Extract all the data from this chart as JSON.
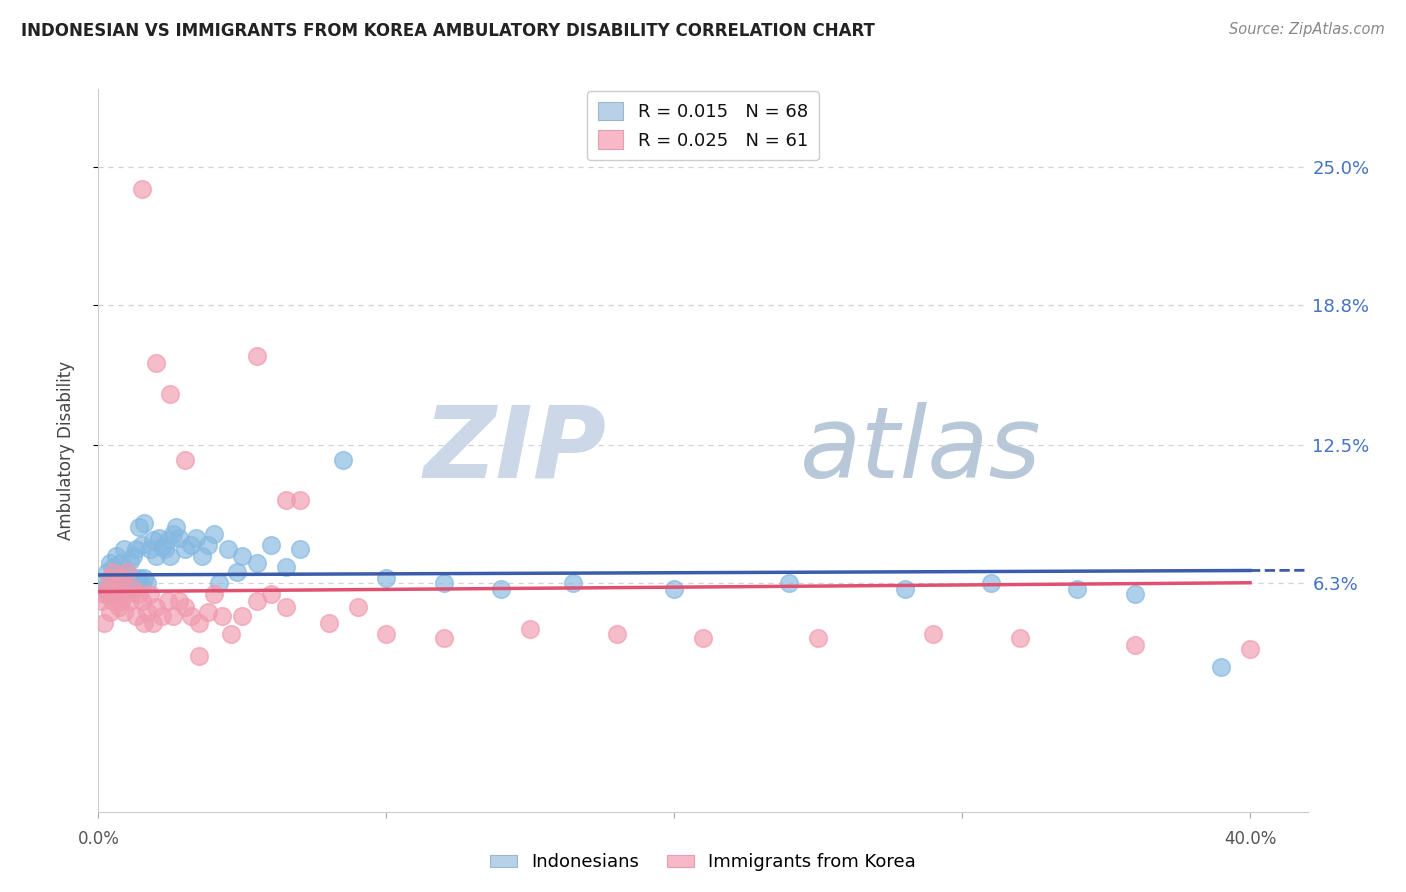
{
  "title": "INDONESIAN VS IMMIGRANTS FROM KOREA AMBULATORY DISABILITY CORRELATION CHART",
  "source": "Source: ZipAtlas.com",
  "ylabel": "Ambulatory Disability",
  "ytick_labels": [
    "6.3%",
    "12.5%",
    "18.8%",
    "25.0%"
  ],
  "ytick_values": [
    0.063,
    0.125,
    0.188,
    0.25
  ],
  "xlim": [
    0.0,
    0.42
  ],
  "ylim": [
    -0.04,
    0.285
  ],
  "legend_label_1": "R = 0.015   N = 68",
  "legend_label_2": "R = 0.025   N = 61",
  "indonesian_color": "#85b8e0",
  "korean_color": "#f09aae",
  "trend_indonesian_color": "#3a5caa",
  "trend_korean_color": "#e05070",
  "background_color": "#ffffff",
  "grid_color": "#cccccc",
  "watermark_zip": "ZIP",
  "watermark_atlas": "atlas",
  "watermark_color": "#ccd8e8",
  "indonesian_x": [
    0.001,
    0.002,
    0.003,
    0.003,
    0.004,
    0.004,
    0.005,
    0.005,
    0.006,
    0.006,
    0.007,
    0.007,
    0.008,
    0.008,
    0.009,
    0.009,
    0.01,
    0.01,
    0.011,
    0.011,
    0.012,
    0.012,
    0.013,
    0.013,
    0.014,
    0.014,
    0.015,
    0.015,
    0.016,
    0.016,
    0.017,
    0.018,
    0.019,
    0.02,
    0.021,
    0.022,
    0.023,
    0.024,
    0.025,
    0.026,
    0.027,
    0.028,
    0.03,
    0.032,
    0.034,
    0.036,
    0.038,
    0.04,
    0.042,
    0.045,
    0.048,
    0.05,
    0.055,
    0.06,
    0.065,
    0.07,
    0.085,
    0.1,
    0.12,
    0.14,
    0.165,
    0.2,
    0.24,
    0.28,
    0.31,
    0.34,
    0.36,
    0.39
  ],
  "indonesian_y": [
    0.063,
    0.06,
    0.058,
    0.068,
    0.065,
    0.072,
    0.06,
    0.07,
    0.058,
    0.075,
    0.063,
    0.068,
    0.06,
    0.072,
    0.065,
    0.078,
    0.063,
    0.068,
    0.06,
    0.073,
    0.065,
    0.075,
    0.062,
    0.078,
    0.065,
    0.088,
    0.062,
    0.08,
    0.065,
    0.09,
    0.063,
    0.078,
    0.082,
    0.075,
    0.083,
    0.079,
    0.078,
    0.082,
    0.075,
    0.085,
    0.088,
    0.083,
    0.078,
    0.08,
    0.083,
    0.075,
    0.08,
    0.085,
    0.063,
    0.078,
    0.068,
    0.075,
    0.072,
    0.08,
    0.07,
    0.078,
    0.118,
    0.065,
    0.063,
    0.06,
    0.063,
    0.06,
    0.063,
    0.06,
    0.063,
    0.06,
    0.058,
    0.025
  ],
  "korean_x": [
    0.001,
    0.002,
    0.002,
    0.003,
    0.004,
    0.004,
    0.005,
    0.005,
    0.006,
    0.007,
    0.007,
    0.008,
    0.008,
    0.009,
    0.01,
    0.01,
    0.011,
    0.012,
    0.013,
    0.014,
    0.015,
    0.016,
    0.017,
    0.018,
    0.019,
    0.02,
    0.022,
    0.024,
    0.026,
    0.028,
    0.03,
    0.032,
    0.035,
    0.038,
    0.04,
    0.043,
    0.046,
    0.05,
    0.055,
    0.06,
    0.065,
    0.07,
    0.08,
    0.09,
    0.1,
    0.12,
    0.15,
    0.18,
    0.21,
    0.25,
    0.29,
    0.32,
    0.36,
    0.4,
    0.015,
    0.02,
    0.025,
    0.03,
    0.035,
    0.055,
    0.065
  ],
  "korean_y": [
    0.055,
    0.058,
    0.045,
    0.06,
    0.05,
    0.065,
    0.055,
    0.068,
    0.058,
    0.052,
    0.06,
    0.055,
    0.065,
    0.05,
    0.058,
    0.068,
    0.055,
    0.06,
    0.048,
    0.058,
    0.055,
    0.045,
    0.05,
    0.058,
    0.045,
    0.052,
    0.048,
    0.055,
    0.048,
    0.055,
    0.052,
    0.048,
    0.045,
    0.05,
    0.058,
    0.048,
    0.04,
    0.048,
    0.055,
    0.058,
    0.052,
    0.1,
    0.045,
    0.052,
    0.04,
    0.038,
    0.042,
    0.04,
    0.038,
    0.038,
    0.04,
    0.038,
    0.035,
    0.033,
    0.24,
    0.162,
    0.148,
    0.118,
    0.03,
    0.165,
    0.1
  ]
}
